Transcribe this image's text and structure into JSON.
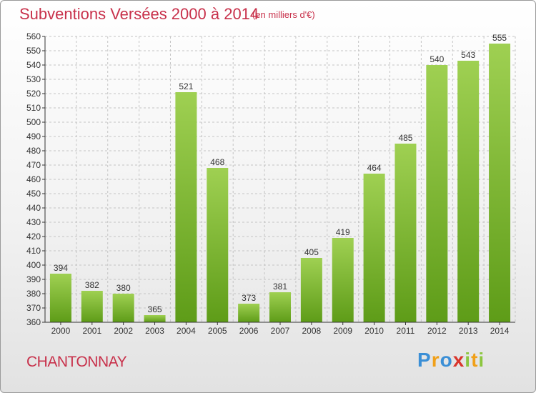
{
  "header": {
    "title": "Subventions Versées 2000 à 2014",
    "subtitle": "(en milliers d'€)"
  },
  "footer": {
    "commune": "CHANTONNAY",
    "logo": "Proxiti",
    "logo_letters": [
      {
        "char": "P",
        "color": "#3b8fd6"
      },
      {
        "char": "r",
        "color": "#f0a019"
      },
      {
        "char": "o",
        "color": "#3b8fd6"
      },
      {
        "char": "x",
        "color": "#d9342b"
      },
      {
        "char": "i",
        "color": "#8cc63f"
      },
      {
        "char": "t",
        "color": "#f0a019"
      },
      {
        "char": "i",
        "color": "#8cc63f"
      }
    ]
  },
  "colors": {
    "accent": "#c8314b",
    "bar_top": "#9fd052",
    "bar_bottom": "#5e9c18",
    "grid": "#c4c4c4",
    "axis": "#333333"
  },
  "chart_data": {
    "type": "bar",
    "title": "Subventions Versées 2000 à 2014",
    "subtitle": "(en milliers d'€)",
    "categories": [
      "2000",
      "2001",
      "2002",
      "2003",
      "2004",
      "2005",
      "2006",
      "2007",
      "2008",
      "2009",
      "2010",
      "2011",
      "2012",
      "2013",
      "2014"
    ],
    "values": [
      394,
      382,
      380,
      365,
      521,
      468,
      373,
      381,
      405,
      419,
      464,
      485,
      540,
      543,
      555
    ],
    "ylim": [
      360,
      560
    ],
    "yticks": [
      360,
      370,
      380,
      390,
      400,
      410,
      420,
      430,
      440,
      450,
      460,
      470,
      480,
      490,
      500,
      510,
      520,
      530,
      540,
      550,
      560
    ],
    "grid": true,
    "data_labels": true
  }
}
